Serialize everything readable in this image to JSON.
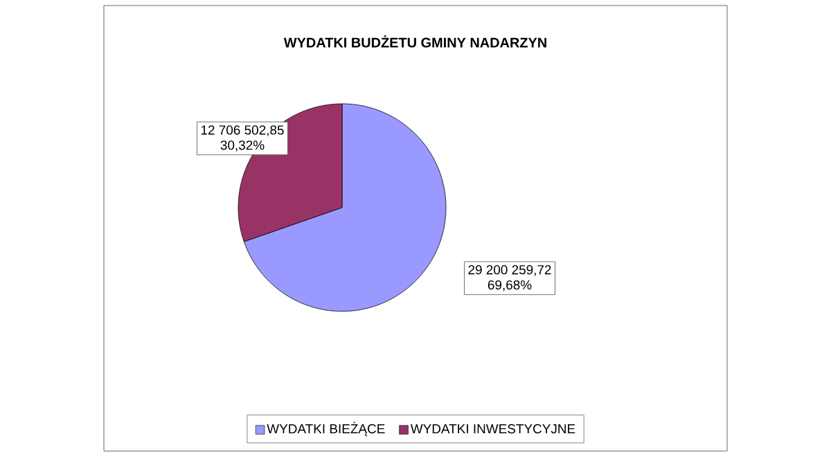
{
  "chart_data": {
    "type": "pie",
    "title": "WYDATKI BUDŻETU GMINY NADARZYN",
    "categories": [
      "WYDATKI BIEŻĄCE",
      "WYDATKI INWESTYCYJNE"
    ],
    "values": [
      29200259.72,
      12706502.85
    ],
    "colors": [
      "#9999ff",
      "#993366"
    ],
    "value_labels": [
      "29 200 259,72",
      "12 706 502,85"
    ],
    "annotations": [
      "69,68%",
      "30,32%"
    ],
    "legend": "bottom"
  }
}
